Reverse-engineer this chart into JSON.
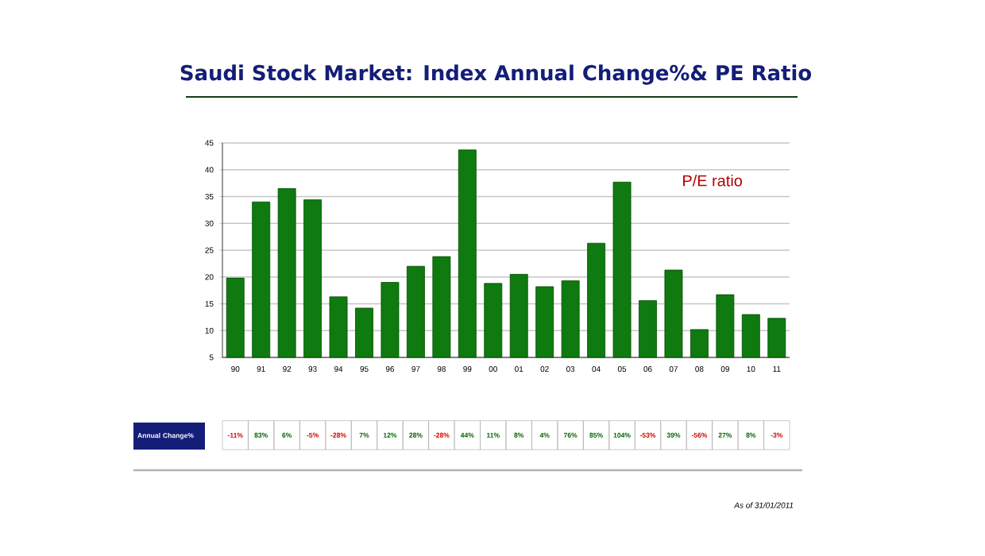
{
  "chart_data": {
    "type": "bar",
    "title": "Saudi Stock Market: Index Annual Change%& PE Ratio",
    "categories": [
      "90",
      "91",
      "92",
      "93",
      "94",
      "95",
      "96",
      "97",
      "98",
      "99",
      "00",
      "01",
      "02",
      "03",
      "04",
      "05",
      "06",
      "07",
      "08",
      "09",
      "10",
      "11"
    ],
    "series": [
      {
        "name": "P/E ratio",
        "color": "#0f7a0f",
        "values": [
          19.8,
          34,
          36.5,
          34.4,
          16.3,
          14.2,
          19,
          22,
          23.8,
          43.7,
          18.8,
          20.5,
          18.2,
          19.3,
          26.3,
          37.7,
          15.6,
          21.3,
          10.2,
          16.7,
          13,
          12.3
        ]
      }
    ],
    "ylim": [
      5,
      45
    ],
    "yticks": [
      5,
      10,
      15,
      20,
      25,
      30,
      35,
      40,
      45
    ],
    "grid": "y",
    "legend": "top right",
    "annotations": [
      "Annual Change%",
      "-11%",
      "83%",
      "6%",
      "-5%",
      "-28%",
      "7%",
      "12%",
      "28%",
      "-28%",
      "44%",
      "11%",
      "8%",
      "4%",
      "76%",
      "85%",
      "104%",
      "-53%",
      "39%",
      "-56%",
      "27%",
      "8%",
      "-3%",
      "As of 31/01/2011"
    ]
  }
}
